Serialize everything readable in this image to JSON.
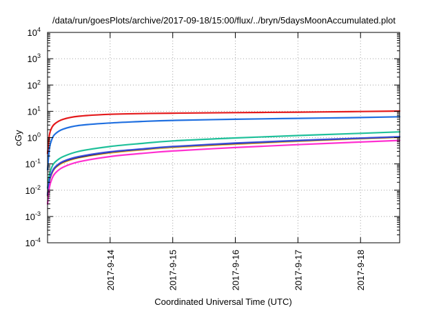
{
  "chart_data": {
    "type": "line",
    "title": "/data/run/goesPlots/archive/2017-09-18/15:00/flux/../bryn/5daysMoonAccumulated.plot",
    "xlabel": "Coordinated Universal Time (UTC)",
    "ylabel": "cGy",
    "x_unit": "days",
    "xlim": [
      "2017-09-13 00:00",
      "2017-09-18 15:00"
    ],
    "xticks": [
      "2017-9-14",
      "2017-9-15",
      "2017-9-16",
      "2017-9-17",
      "2017-9-18"
    ],
    "yscale": "log",
    "ylim": [
      0.0001,
      10000
    ],
    "yticks": [
      {
        "base": "10",
        "exp": "-4"
      },
      {
        "base": "10",
        "exp": "-3"
      },
      {
        "base": "10",
        "exp": "-2"
      },
      {
        "base": "10",
        "exp": "-1"
      },
      {
        "base": "10",
        "exp": "0"
      },
      {
        "base": "10",
        "exp": "1"
      },
      {
        "base": "10",
        "exp": "2"
      },
      {
        "base": "10",
        "exp": "3"
      },
      {
        "base": "10",
        "exp": "4"
      }
    ],
    "grid": true,
    "series": [
      {
        "color": "#e41a1c",
        "x": [
          "2017-09-13 00:00",
          "2017-09-13 00:45",
          "2017-09-13 01:45",
          "2017-09-13 03:00",
          "2017-09-13 06:00",
          "2017-09-13 12:00",
          "2017-09-14 00:00",
          "2017-09-14 12:00",
          "2017-09-15 00:00",
          "2017-09-16 00:00",
          "2017-09-17 00:00",
          "2017-09-18 00:00",
          "2017-09-18 15:00"
        ],
        "y": [
          0.25,
          1.3,
          2.5,
          3.5,
          5.0,
          6.5,
          7.7,
          8.2,
          8.5,
          8.9,
          9.3,
          9.8,
          10.2
        ]
      },
      {
        "color": "#1f6fe0",
        "x": [
          "2017-09-13 00:00",
          "2017-09-13 00:45",
          "2017-09-13 01:45",
          "2017-09-13 03:00",
          "2017-09-13 06:00",
          "2017-09-13 12:00",
          "2017-09-14 00:00",
          "2017-09-14 12:00",
          "2017-09-15 00:00",
          "2017-09-16 00:00",
          "2017-09-17 00:00",
          "2017-09-18 00:00",
          "2017-09-18 15:00"
        ],
        "y": [
          0.06,
          0.4,
          0.9,
          1.4,
          2.1,
          2.9,
          3.6,
          4.1,
          4.5,
          5.0,
          5.4,
          5.8,
          6.2
        ]
      },
      {
        "color": "#1fc09a",
        "x": [
          "2017-09-13 00:00",
          "2017-09-13 00:45",
          "2017-09-13 01:45",
          "2017-09-13 03:00",
          "2017-09-13 06:00",
          "2017-09-13 12:00",
          "2017-09-14 00:00",
          "2017-09-14 12:00",
          "2017-09-15 00:00",
          "2017-09-16 00:00",
          "2017-09-17 00:00",
          "2017-09-18 00:00",
          "2017-09-18 15:00"
        ],
        "y": [
          0.012,
          0.04,
          0.08,
          0.12,
          0.19,
          0.3,
          0.46,
          0.6,
          0.75,
          0.97,
          1.2,
          1.45,
          1.65
        ]
      },
      {
        "color": "#f0c040",
        "x": [
          "2017-09-13 00:00",
          "2017-09-13 00:45",
          "2017-09-13 01:45",
          "2017-09-13 03:00",
          "2017-09-13 06:00",
          "2017-09-13 12:00",
          "2017-09-14 00:00",
          "2017-09-14 12:00",
          "2017-09-15 00:00",
          "2017-09-16 00:00",
          "2017-09-17 00:00",
          "2017-09-18 00:00",
          "2017-09-18 15:00"
        ],
        "y": [
          0.006,
          0.022,
          0.045,
          0.07,
          0.11,
          0.17,
          0.26,
          0.34,
          0.42,
          0.56,
          0.72,
          0.9,
          1.02
        ]
      },
      {
        "color": "#2a0a4a",
        "x": [
          "2017-09-13 00:00",
          "2017-09-13 00:45",
          "2017-09-13 01:45",
          "2017-09-13 03:00",
          "2017-09-13 06:00",
          "2017-09-13 12:00",
          "2017-09-14 00:00",
          "2017-09-14 12:00",
          "2017-09-15 00:00",
          "2017-09-16 00:00",
          "2017-09-17 00:00",
          "2017-09-18 00:00",
          "2017-09-18 15:00"
        ],
        "y": [
          0.0065,
          0.024,
          0.048,
          0.075,
          0.12,
          0.18,
          0.28,
          0.36,
          0.45,
          0.6,
          0.76,
          0.94,
          1.06
        ]
      },
      {
        "color": "#3b4fd8",
        "x": [
          "2017-09-13 00:00",
          "2017-09-13 00:45",
          "2017-09-13 01:45",
          "2017-09-13 03:00",
          "2017-09-13 06:00",
          "2017-09-13 12:00",
          "2017-09-14 00:00",
          "2017-09-14 12:00",
          "2017-09-15 00:00",
          "2017-09-16 00:00",
          "2017-09-17 00:00",
          "2017-09-18 00:00",
          "2017-09-18 15:00"
        ],
        "y": [
          0.0068,
          0.025,
          0.05,
          0.078,
          0.125,
          0.19,
          0.29,
          0.37,
          0.46,
          0.62,
          0.78,
          0.96,
          1.08
        ]
      },
      {
        "color": "#ff2fd0",
        "x": [
          "2017-09-13 00:00",
          "2017-09-13 00:45",
          "2017-09-13 01:45",
          "2017-09-13 03:00",
          "2017-09-13 06:00",
          "2017-09-13 12:00",
          "2017-09-14 00:00",
          "2017-09-14 12:00",
          "2017-09-15 00:00",
          "2017-09-16 00:00",
          "2017-09-17 00:00",
          "2017-09-18 00:00",
          "2017-09-18 15:00"
        ],
        "y": [
          0.003,
          0.013,
          0.028,
          0.045,
          0.075,
          0.12,
          0.19,
          0.25,
          0.31,
          0.42,
          0.54,
          0.68,
          0.78
        ]
      }
    ]
  }
}
